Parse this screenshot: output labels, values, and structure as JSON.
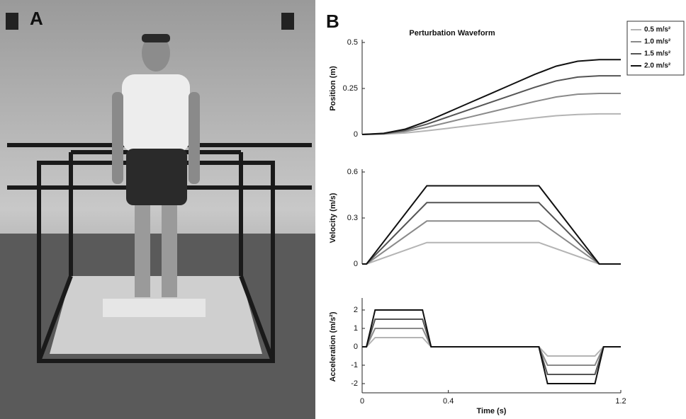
{
  "panel_labels": [
    "A",
    "B"
  ],
  "chart_data": [
    {
      "type": "line",
      "title": "Perturbation Waveform",
      "y_label": "Position (m)",
      "x": [
        0,
        0.1,
        0.2,
        0.3,
        0.4,
        0.5,
        0.6,
        0.7,
        0.8,
        0.9,
        1.0,
        1.1,
        1.2
      ],
      "xlim": [
        0,
        1.2
      ],
      "ylim": [
        0,
        0.5
      ],
      "yticks": [
        0,
        0.25,
        0.5
      ],
      "legend": "upper right",
      "series": [
        {
          "name": "0.5 m/s²",
          "color": "#b4b4b4",
          "values": [
            0,
            0.002,
            0.008,
            0.02,
            0.034,
            0.048,
            0.062,
            0.076,
            0.09,
            0.102,
            0.109,
            0.112,
            0.112
          ]
        },
        {
          "name": "1.0 m/s²",
          "color": "#8a8a8a",
          "values": [
            0,
            0.003,
            0.016,
            0.039,
            0.067,
            0.095,
            0.123,
            0.151,
            0.179,
            0.204,
            0.219,
            0.223,
            0.223
          ]
        },
        {
          "name": "1.5 m/s²",
          "color": "#555555",
          "values": [
            0,
            0.005,
            0.023,
            0.056,
            0.096,
            0.136,
            0.176,
            0.216,
            0.256,
            0.291,
            0.312,
            0.319,
            0.319
          ]
        },
        {
          "name": "2.0 m/s²",
          "color": "#111111",
          "values": [
            0,
            0.006,
            0.029,
            0.071,
            0.122,
            0.173,
            0.224,
            0.275,
            0.326,
            0.371,
            0.398,
            0.407,
            0.407
          ]
        }
      ]
    },
    {
      "type": "line",
      "y_label": "Velocity (m/s)",
      "x": [
        0,
        0.02,
        0.3,
        0.82,
        1.1,
        1.2
      ],
      "xlim": [
        0,
        1.2
      ],
      "ylim": [
        0,
        0.6
      ],
      "yticks": [
        0,
        0.3,
        0.6
      ],
      "series": [
        {
          "color": "#b4b4b4",
          "values": [
            0,
            0,
            0.14,
            0.14,
            0,
            0
          ]
        },
        {
          "color": "#8a8a8a",
          "values": [
            0,
            0,
            0.28,
            0.28,
            0,
            0
          ]
        },
        {
          "color": "#555555",
          "values": [
            0,
            0,
            0.4,
            0.4,
            0,
            0
          ]
        },
        {
          "color": "#111111",
          "values": [
            0,
            0,
            0.51,
            0.51,
            0,
            0
          ]
        }
      ]
    },
    {
      "type": "line",
      "y_label": "Acceleration (m/s²)",
      "x_label": "Time (s)",
      "x": [
        0,
        0.02,
        0.06,
        0.28,
        0.32,
        0.82,
        0.86,
        1.08,
        1.12,
        1.2
      ],
      "xlim": [
        0,
        1.2
      ],
      "xticks": [
        0,
        0.4,
        1.2
      ],
      "ylim": [
        -2.5,
        2.5
      ],
      "yticks": [
        -2,
        -1,
        0,
        1,
        2
      ],
      "series": [
        {
          "color": "#b4b4b4",
          "values": [
            0,
            0,
            0.5,
            0.5,
            0,
            0,
            -0.5,
            -0.5,
            0,
            0
          ]
        },
        {
          "color": "#8a8a8a",
          "values": [
            0,
            0,
            1,
            1,
            0,
            0,
            -1,
            -1,
            0,
            0
          ]
        },
        {
          "color": "#555555",
          "values": [
            0,
            0,
            1.5,
            1.5,
            0,
            0,
            -1.5,
            -1.5,
            0,
            0
          ]
        },
        {
          "color": "#111111",
          "values": [
            0,
            0,
            2,
            2,
            0,
            0,
            -2,
            -2,
            0,
            0
          ]
        }
      ]
    }
  ]
}
